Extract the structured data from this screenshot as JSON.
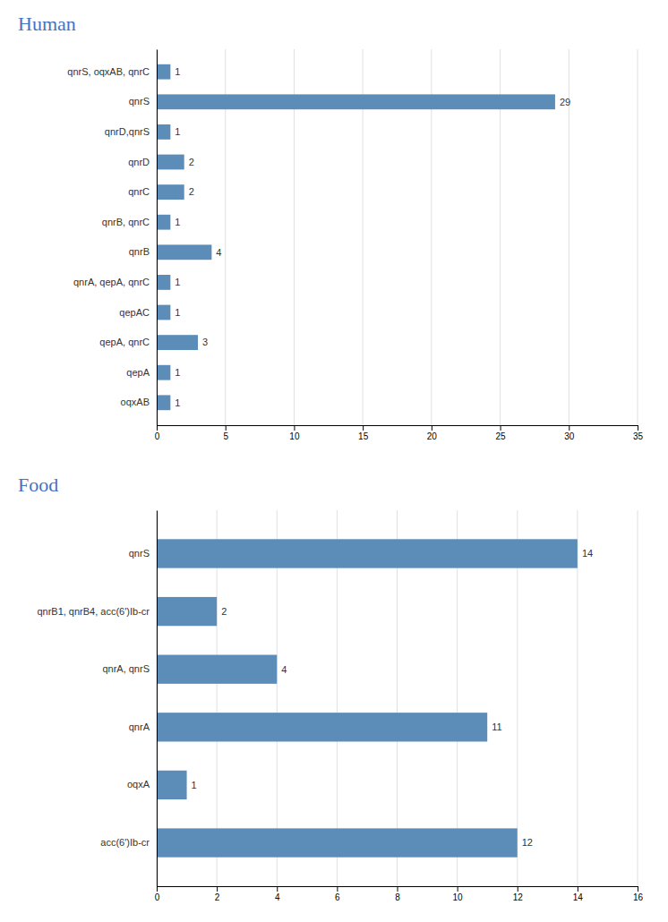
{
  "chart_data": [
    {
      "type": "bar",
      "title": "Human",
      "orientation": "horizontal",
      "categories": [
        "qnrS, oqxAB, qnrC",
        "qnrS",
        "qnrD,qnrS",
        "qnrD",
        "qnrC",
        "qnrB, qnrC",
        "qnrB",
        "qnrA, qepA, qnrC",
        "qepAC",
        "qepA, qnrC",
        "qepA",
        "oqxAB"
      ],
      "values": [
        1,
        29,
        1,
        2,
        2,
        1,
        4,
        1,
        1,
        3,
        1,
        1
      ],
      "color": "#5B8DB8",
      "xlim": [
        0,
        35
      ],
      "xticks": [
        0,
        5,
        10,
        15,
        20,
        25,
        30,
        35
      ],
      "grid": true,
      "data_labels": true
    },
    {
      "type": "bar",
      "title": "Food",
      "orientation": "horizontal",
      "categories": [
        "qnrS",
        "qnrB1, qnrB4, acc(6')Ib-cr",
        "qnrA, qnrS",
        "qnrA",
        "oqxA",
        "acc(6')Ib-cr"
      ],
      "values": [
        14,
        2,
        4,
        11,
        1,
        12
      ],
      "color": "#5B8DB8",
      "xlim": [
        0,
        16
      ],
      "xticks": [
        0,
        2,
        4,
        6,
        8,
        10,
        12,
        14,
        16
      ],
      "grid": true,
      "data_labels": true
    }
  ]
}
